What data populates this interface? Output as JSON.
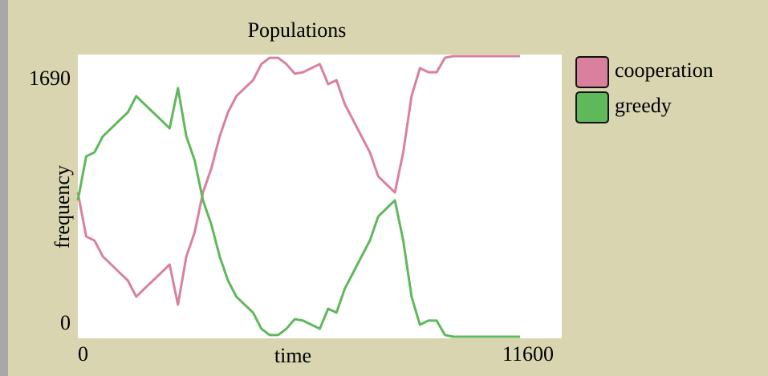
{
  "chart_data": {
    "type": "line",
    "title": "Populations",
    "x_label": "time",
    "y_label": "frequency",
    "x": [
      0,
      200,
      400,
      600,
      800,
      1000,
      1200,
      1400,
      1600,
      1800,
      2000,
      2200,
      2400,
      2600,
      2800,
      3000,
      3200,
      3400,
      3600,
      3800,
      4000,
      4200,
      4400,
      4600,
      4800,
      5000,
      5200,
      5400,
      5600,
      5800,
      6000,
      6200,
      6400,
      6600,
      6800,
      7000,
      7200,
      7400,
      7600,
      7800,
      8000,
      8200,
      8400,
      8600,
      8800,
      9000,
      9200,
      9400,
      9600,
      9800,
      10000,
      10200,
      10400,
      10600
    ],
    "series": [
      {
        "name": "cooperation",
        "color": "#d9809e",
        "values": [
          869,
          604,
          579,
          483,
          435,
          386,
          338,
          241,
          290,
          338,
          386,
          435,
          193,
          483,
          628,
          869,
          1014,
          1207,
          1352,
          1449,
          1497,
          1545,
          1642,
          1680,
          1680,
          1642,
          1584,
          1593,
          1618,
          1642,
          1521,
          1545,
          1400,
          1304,
          1207,
          1111,
          966,
          917,
          869,
          1111,
          1449,
          1618,
          1593,
          1593,
          1680,
          1690,
          1690,
          1690,
          1690,
          1690,
          1690,
          1690,
          1690,
          1690
        ]
      },
      {
        "name": "greedy",
        "color": "#5fb85a",
        "values": [
          821,
          1086,
          1111,
          1207,
          1255,
          1304,
          1352,
          1449,
          1400,
          1352,
          1304,
          1255,
          1497,
          1207,
          1062,
          821,
          676,
          483,
          338,
          241,
          193,
          145,
          48,
          10,
          10,
          48,
          106,
          97,
          72,
          48,
          169,
          145,
          290,
          386,
          483,
          579,
          724,
          773,
          821,
          579,
          241,
          72,
          97,
          97,
          10,
          0,
          0,
          0,
          0,
          0,
          0,
          0,
          0,
          0
        ]
      }
    ],
    "xlim": [
      0,
      11600
    ],
    "ylim": [
      0,
      1690
    ],
    "xticks": [
      0,
      11600
    ],
    "yticks": [
      0,
      1690
    ]
  }
}
